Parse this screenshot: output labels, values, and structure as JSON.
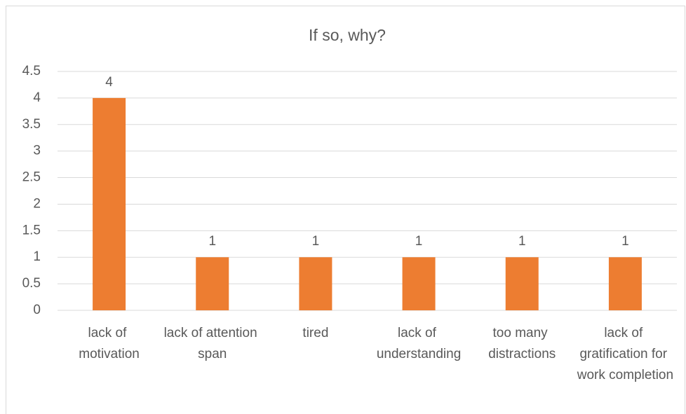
{
  "chart_data": {
    "type": "bar",
    "title": "If so, why?",
    "categories": [
      "lack of motivation",
      "lack of attention span",
      "tired",
      "lack of understanding",
      "too many distractions",
      "lack of gratification for work completion"
    ],
    "values": [
      4,
      1,
      1,
      1,
      1,
      1
    ],
    "color": "#ed7d31",
    "ylim": [
      0,
      4.5
    ],
    "yticks": [
      0,
      0.5,
      1,
      1.5,
      2,
      2.5,
      3,
      3.5,
      4,
      4.5
    ],
    "grid": true
  }
}
